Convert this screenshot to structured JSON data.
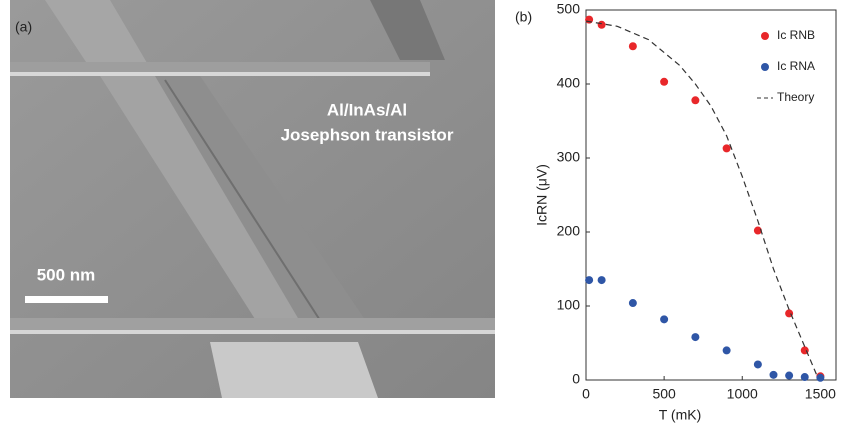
{
  "image_panel": {
    "label": "(a)",
    "caption_lines": [
      "Al/InAs/Al",
      "Josephson transistor"
    ],
    "scale_bar": "500 nm"
  },
  "chart_data": {
    "type": "scatter",
    "label": "(b)",
    "xlabel": "T (mK)",
    "ylabel": "IcRN (μV)",
    "xlim": [
      0,
      1600
    ],
    "ylim": [
      0,
      500
    ],
    "xticks": [
      0,
      500,
      1000,
      1500
    ],
    "yticks": [
      0,
      100,
      200,
      300,
      400,
      500
    ],
    "legend": "upper right",
    "series": [
      {
        "name": "Ic RNB",
        "color": "#e8272a",
        "style": "dot",
        "x": [
          20,
          100,
          300,
          500,
          700,
          900,
          1100,
          1300,
          1400,
          1500
        ],
        "values": [
          487,
          480,
          451,
          403,
          378,
          313,
          202,
          90,
          40,
          5
        ]
      },
      {
        "name": "Ic RNA",
        "color": "#2f56a6",
        "style": "dot",
        "x": [
          20,
          100,
          300,
          500,
          700,
          900,
          1100,
          1200,
          1300,
          1400,
          1500
        ],
        "values": [
          135,
          135,
          104,
          82,
          58,
          40,
          21,
          7,
          6,
          4,
          3
        ]
      },
      {
        "name": "Theory",
        "color": "#333333",
        "style": "dashed",
        "x": [
          0,
          200,
          400,
          600,
          700,
          800,
          900,
          1000,
          1100,
          1200,
          1300,
          1400,
          1480
        ],
        "values": [
          485,
          478,
          460,
          425,
          400,
          370,
          330,
          275,
          215,
          150,
          95,
          45,
          5
        ]
      }
    ]
  }
}
